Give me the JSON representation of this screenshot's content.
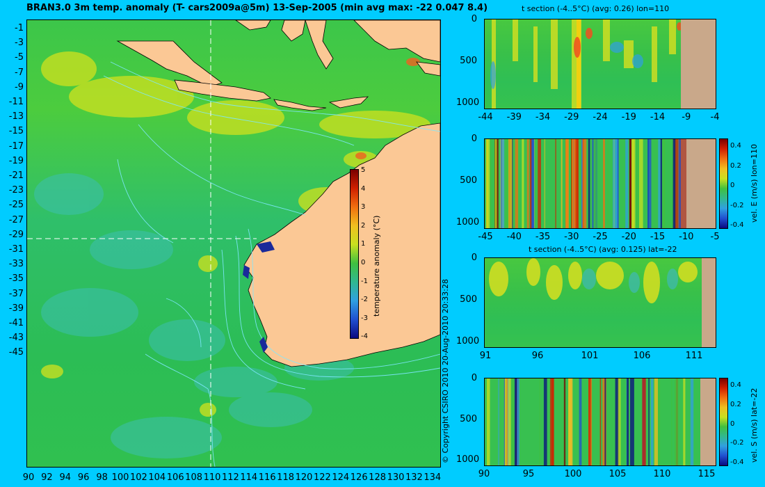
{
  "main_title": "BRAN3.0 3m temp. anomaly (T- cars2009a@5m) 13-Sep-2005 (min avg max: -22 0.047 8.4)",
  "map": {
    "lat_ticks": [
      "-1",
      "-3",
      "-5",
      "-7",
      "-9",
      "-11",
      "-13",
      "-15",
      "-17",
      "-19",
      "-21",
      "-23",
      "-25",
      "-27",
      "-29",
      "-31",
      "-33",
      "-35",
      "-37",
      "-39",
      "-41",
      "-43",
      "-45"
    ],
    "lon_ticks": [
      "90",
      "92",
      "94",
      "96",
      "98",
      "100",
      "102",
      "104",
      "106",
      "108",
      "110",
      "112",
      "114",
      "116",
      "118",
      "120",
      "122",
      "124",
      "126",
      "128",
      "130",
      "132",
      "134"
    ],
    "colorbar": {
      "label": "temperature anomaly (°C)",
      "ticks": [
        "5",
        "4",
        "3",
        "2",
        "1",
        "0",
        "-1",
        "-2",
        "-3",
        "-4"
      ]
    },
    "copyright": "© Copyright CSIRO 2010   20-Aug-2010 20:33:28"
  },
  "panels": [
    {
      "title": "t section (-4..5°C) (avg: 0.26) lon=110",
      "y_ticks": [
        "0",
        "500",
        "1000"
      ],
      "x_ticks": [
        "-44",
        "-39",
        "-34",
        "-29",
        "-24",
        "-19",
        "-14",
        "-9",
        "-4"
      ]
    },
    {
      "title": "",
      "y_ticks": [
        "0",
        "500",
        "1000"
      ],
      "x_ticks": [
        "-45",
        "-40",
        "-35",
        "-30",
        "-25",
        "-20",
        "-15",
        "-10",
        "-5"
      ],
      "colorbar": {
        "label": "vel. E (m/s) lon=110",
        "ticks": [
          "0.4",
          "0.2",
          "0",
          "-0.2",
          "-0.4"
        ]
      }
    },
    {
      "title": "t section (-4..5°C) (avg: 0.125) lat=-22",
      "y_ticks": [
        "0",
        "500",
        "1000"
      ],
      "x_ticks": [
        "91",
        "96",
        "101",
        "106",
        "111"
      ]
    },
    {
      "title": "",
      "y_ticks": [
        "0",
        "500",
        "1000"
      ],
      "x_ticks": [
        "90",
        "95",
        "100",
        "105",
        "110",
        "115"
      ],
      "colorbar": {
        "label": "vel. S (m/s) lat=-22",
        "ticks": [
          "0.4",
          "0.2",
          "0",
          "-0.2",
          "-0.4"
        ]
      }
    }
  ],
  "colors": {
    "background": "#00ccff",
    "land": "#fbc895",
    "section_land": "#c9a88a",
    "anomaly_green": "#33c24d",
    "contour": "#7fe8ff"
  }
}
